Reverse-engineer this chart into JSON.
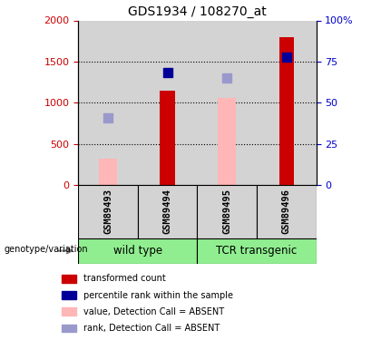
{
  "title": "GDS1934 / 108270_at",
  "samples": [
    "GSM89493",
    "GSM89494",
    "GSM89495",
    "GSM89496"
  ],
  "transformed_count": [
    null,
    1150,
    null,
    1800
  ],
  "percentile_rank_val": [
    null,
    1370,
    null,
    1550
  ],
  "value_absent": [
    320,
    null,
    1060,
    null
  ],
  "rank_absent_val": [
    820,
    null,
    1300,
    null
  ],
  "ylim_left": [
    0,
    2000
  ],
  "ylim_right": [
    0,
    100
  ],
  "yticks_left": [
    0,
    500,
    1000,
    1500,
    2000
  ],
  "yticks_right": [
    0,
    25,
    50,
    75,
    100
  ],
  "bar_width": 0.25,
  "dot_size": 60,
  "sample_bg": "#d3d3d3",
  "group_green": "#90ee90",
  "color_dark_red": "#cc0000",
  "color_dark_blue": "#0000cc",
  "color_bar_present": "#cc0000",
  "color_bar_absent": "#ffb6b6",
  "color_dot_present": "#000099",
  "color_dot_absent": "#9999cc",
  "legend_labels": [
    "transformed count",
    "percentile rank within the sample",
    "value, Detection Call = ABSENT",
    "rank, Detection Call = ABSENT"
  ],
  "legend_colors": [
    "#cc0000",
    "#000099",
    "#ffb6b6",
    "#9999cc"
  ]
}
